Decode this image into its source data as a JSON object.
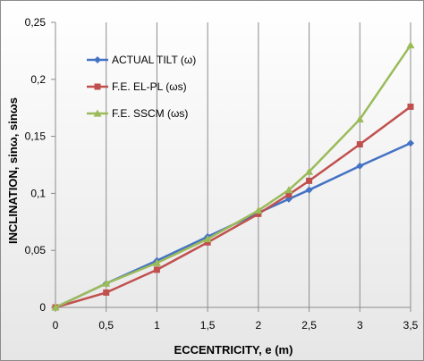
{
  "chart_data": {
    "type": "line",
    "xlabel": "ECCENTRICITY,  e (m)",
    "ylabel": "INCLINATION,  sinω, sinωs",
    "x_ticks": [
      "0",
      "0,5",
      "1",
      "1,5",
      "2",
      "2,5",
      "3",
      "3,5"
    ],
    "y_ticks": [
      "0",
      "0,05",
      "0,1",
      "0,15",
      "0,2",
      "0,25"
    ],
    "xlim": [
      0,
      3.5
    ],
    "ylim": [
      0,
      0.25
    ],
    "grid": "vertical",
    "legend_position": "top-left",
    "series": [
      {
        "name": "ACTUAL TILT (ω)",
        "color": "#4472c4",
        "marker": "diamond",
        "x": [
          0,
          0.5,
          1,
          1.5,
          2,
          2.3,
          2.5,
          3,
          3.5
        ],
        "y": [
          0,
          0.021,
          0.041,
          0.062,
          0.083,
          0.095,
          0.103,
          0.124,
          0.144
        ]
      },
      {
        "name": "F.E. EL-PL (ωs)",
        "color": "#c0504d",
        "marker": "square",
        "x": [
          0,
          0.5,
          1,
          1.5,
          2,
          2.3,
          2.5,
          3,
          3.5
        ],
        "y": [
          0,
          0.013,
          0.033,
          0.057,
          0.082,
          0.099,
          0.111,
          0.143,
          0.176
        ]
      },
      {
        "name": "F.E. SSCM (ωs)",
        "color": "#9bbb59",
        "marker": "triangle",
        "x": [
          0,
          0.5,
          1,
          1.5,
          2,
          2.3,
          2.5,
          3,
          3.5
        ],
        "y": [
          0,
          0.021,
          0.039,
          0.06,
          0.085,
          0.103,
          0.119,
          0.165,
          0.23
        ]
      }
    ]
  }
}
